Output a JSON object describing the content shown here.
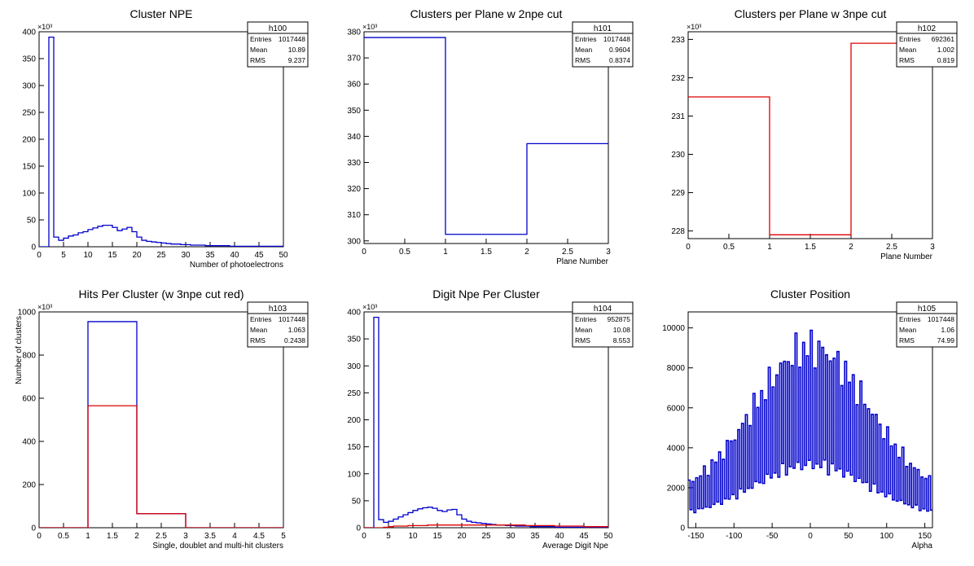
{
  "chart_data": [
    {
      "type": "bar",
      "id": "h100",
      "title": "Cluster NPE",
      "xlabel": "Number of photoelectrons",
      "ylabel": "",
      "exponent_label": "×10³",
      "xlim": [
        0,
        50
      ],
      "ylim": [
        0,
        400
      ],
      "xticks": [
        0,
        5,
        10,
        15,
        20,
        25,
        30,
        35,
        40,
        45,
        50
      ],
      "yticks": [
        0,
        50,
        100,
        150,
        200,
        250,
        300,
        350,
        400
      ],
      "stats": {
        "title": "h100",
        "rows": [
          [
            "Entries",
            "1017448"
          ],
          [
            "Mean",
            "10.89"
          ],
          [
            "RMS",
            "9.237"
          ]
        ]
      },
      "series": [
        {
          "color": "#0000cc",
          "bin_edges": [
            0,
            2,
            3,
            4,
            5,
            6,
            7,
            8,
            9,
            10,
            11,
            12,
            13,
            14,
            15,
            16,
            17,
            18,
            19,
            20,
            21,
            22,
            23,
            24,
            25,
            26,
            27,
            28,
            29,
            30,
            31,
            32,
            33,
            34,
            35,
            36,
            37,
            38,
            39,
            40,
            41,
            42,
            43,
            44,
            45,
            46,
            47,
            48,
            49,
            50
          ],
          "values": [
            0,
            390,
            18,
            12,
            16,
            20,
            22,
            26,
            28,
            32,
            35,
            38,
            40,
            40,
            36,
            30,
            33,
            36,
            28,
            18,
            12,
            10,
            9,
            8,
            7,
            6,
            5,
            5,
            4,
            4,
            3,
            3,
            3,
            2,
            2,
            2,
            2,
            2,
            1,
            1,
            1,
            1,
            1,
            1,
            1,
            1,
            1,
            1,
            1
          ]
        }
      ]
    },
    {
      "type": "bar",
      "id": "h101",
      "title": "Clusters per Plane w 2npe cut",
      "xlabel": "Plane Number",
      "ylabel": "",
      "exponent_label": "×10³",
      "xlim": [
        0,
        3
      ],
      "ylim": [
        299,
        380
      ],
      "xticks": [
        0,
        0.5,
        1,
        1.5,
        2,
        2.5,
        3
      ],
      "yticks": [
        300,
        310,
        320,
        330,
        340,
        350,
        360,
        370,
        380
      ],
      "stats": {
        "title": "h101",
        "rows": [
          [
            "Entries",
            "1017448"
          ],
          [
            "Mean",
            "0.9604"
          ],
          [
            "RMS",
            "0.8374"
          ]
        ]
      },
      "series": [
        {
          "color": "#0000cc",
          "bin_edges": [
            0,
            1,
            2,
            3
          ],
          "values": [
            377.8,
            302.5,
            337.2
          ]
        }
      ]
    },
    {
      "type": "bar",
      "id": "h102",
      "title": "Clusters per Plane w 3npe cut",
      "xlabel": "Plane Number",
      "ylabel": "",
      "exponent_label": "×10³",
      "xlim": [
        0,
        3
      ],
      "ylim": [
        227.8,
        233.2
      ],
      "xticks": [
        0,
        0.5,
        1,
        1.5,
        2,
        2.5,
        3
      ],
      "yticks": [
        228,
        229,
        230,
        231,
        232,
        233
      ],
      "stats": {
        "title": "h102",
        "rows": [
          [
            "Entries",
            "692361"
          ],
          [
            "Mean",
            "1.002"
          ],
          [
            "RMS",
            "0.819"
          ]
        ]
      },
      "series": [
        {
          "color": "#dd0000",
          "bin_edges": [
            0,
            1,
            2,
            3
          ],
          "values": [
            231.5,
            227.9,
            232.9
          ]
        }
      ]
    },
    {
      "type": "bar",
      "id": "h103",
      "title": "Hits Per Cluster (w 3npe cut red)",
      "xlabel": "Single, doublet and multi-hit clusters",
      "ylabel": "Number of clusters",
      "exponent_label": "×10³",
      "xlim": [
        0,
        5
      ],
      "ylim": [
        0,
        1000
      ],
      "xticks": [
        0,
        0.5,
        1,
        1.5,
        2,
        2.5,
        3,
        3.5,
        4,
        4.5,
        5
      ],
      "yticks": [
        0,
        200,
        400,
        600,
        800,
        1000
      ],
      "stats": {
        "title": "h103",
        "rows": [
          [
            "Entries",
            "1017448"
          ],
          [
            "Mean",
            "1.063"
          ],
          [
            "RMS",
            "0.2438"
          ]
        ]
      },
      "series": [
        {
          "color": "#0000cc",
          "bin_edges": [
            0,
            1,
            2,
            3,
            4,
            5
          ],
          "values": [
            0,
            955,
            65,
            0,
            0
          ]
        },
        {
          "color": "#dd0000",
          "bin_edges": [
            0,
            1,
            2,
            3,
            4,
            5
          ],
          "values": [
            0,
            565,
            65,
            0,
            0
          ]
        }
      ]
    },
    {
      "type": "bar",
      "id": "h104",
      "title": "Digit Npe Per Cluster",
      "xlabel": "Average Digit Npe",
      "ylabel": "",
      "exponent_label": "×10³",
      "xlim": [
        0,
        50
      ],
      "ylim": [
        0,
        400
      ],
      "xticks": [
        0,
        5,
        10,
        15,
        20,
        25,
        30,
        35,
        40,
        45,
        50
      ],
      "yticks": [
        0,
        50,
        100,
        150,
        200,
        250,
        300,
        350,
        400
      ],
      "stats": {
        "title": "h104",
        "rows": [
          [
            "Entries",
            "952875"
          ],
          [
            "Mean",
            "10.08"
          ],
          [
            "RMS",
            "8.553"
          ]
        ]
      },
      "series": [
        {
          "color": "#0000cc",
          "bin_edges": [
            0,
            2,
            3,
            4,
            5,
            6,
            7,
            8,
            9,
            10,
            11,
            12,
            13,
            14,
            15,
            16,
            17,
            18,
            19,
            20,
            21,
            22,
            23,
            24,
            25,
            26,
            27,
            28,
            29,
            30,
            31,
            32,
            33,
            34,
            35,
            36,
            37,
            38,
            39,
            40,
            41,
            42,
            43,
            44,
            45,
            46,
            47,
            48,
            49,
            50
          ],
          "values": [
            0,
            390,
            15,
            10,
            12,
            16,
            20,
            24,
            28,
            32,
            35,
            37,
            38,
            36,
            32,
            30,
            33,
            34,
            24,
            16,
            12,
            10,
            9,
            8,
            7,
            6,
            5,
            5,
            4,
            4,
            3,
            3,
            3,
            2,
            2,
            2,
            2,
            2,
            1,
            1,
            1,
            1,
            1,
            1,
            1,
            1,
            1,
            1,
            1
          ]
        },
        {
          "color": "#dd0000",
          "bin_edges": [
            0,
            2,
            3,
            4,
            5,
            6,
            7,
            8,
            9,
            10,
            11,
            12,
            13,
            14,
            15,
            16,
            17,
            18,
            19,
            20,
            21,
            22,
            23,
            24,
            25,
            26,
            27,
            28,
            29,
            30,
            31,
            32,
            33,
            34,
            35,
            36,
            37,
            38,
            39,
            40,
            41,
            42,
            43,
            44,
            45,
            46,
            47,
            48,
            49,
            50
          ],
          "values": [
            0,
            0,
            0,
            1,
            2,
            3,
            3,
            3,
            4,
            4,
            4,
            4,
            5,
            5,
            5,
            5,
            5,
            5,
            5,
            5,
            5,
            5,
            5,
            5,
            5,
            5,
            5,
            5,
            5,
            5,
            5,
            5,
            4,
            4,
            4,
            4,
            4,
            4,
            3,
            3,
            3,
            3,
            3,
            3,
            2,
            2,
            2,
            2,
            2
          ]
        }
      ]
    },
    {
      "type": "bar",
      "id": "h105",
      "title": "Cluster Position",
      "xlabel": "Alpha",
      "ylabel": "",
      "exponent_label": "",
      "xlim": [
        -160,
        160
      ],
      "ylim": [
        0,
        10800
      ],
      "xticks": [
        -150,
        -100,
        -50,
        0,
        50,
        100,
        150
      ],
      "yticks": [
        0,
        2000,
        4000,
        6000,
        8000,
        10000
      ],
      "stats": {
        "title": "h105",
        "rows": [
          [
            "Entries",
            "1017448"
          ],
          [
            "Mean",
            "1.06"
          ],
          [
            "RMS",
            "74.99"
          ]
        ]
      },
      "position_profile": {
        "x_step": 2.5,
        "peak": 9000,
        "width": 75,
        "base": 1500,
        "dip_fraction": 0.35
      },
      "series": [
        {
          "color": "#0000cc"
        }
      ]
    }
  ]
}
